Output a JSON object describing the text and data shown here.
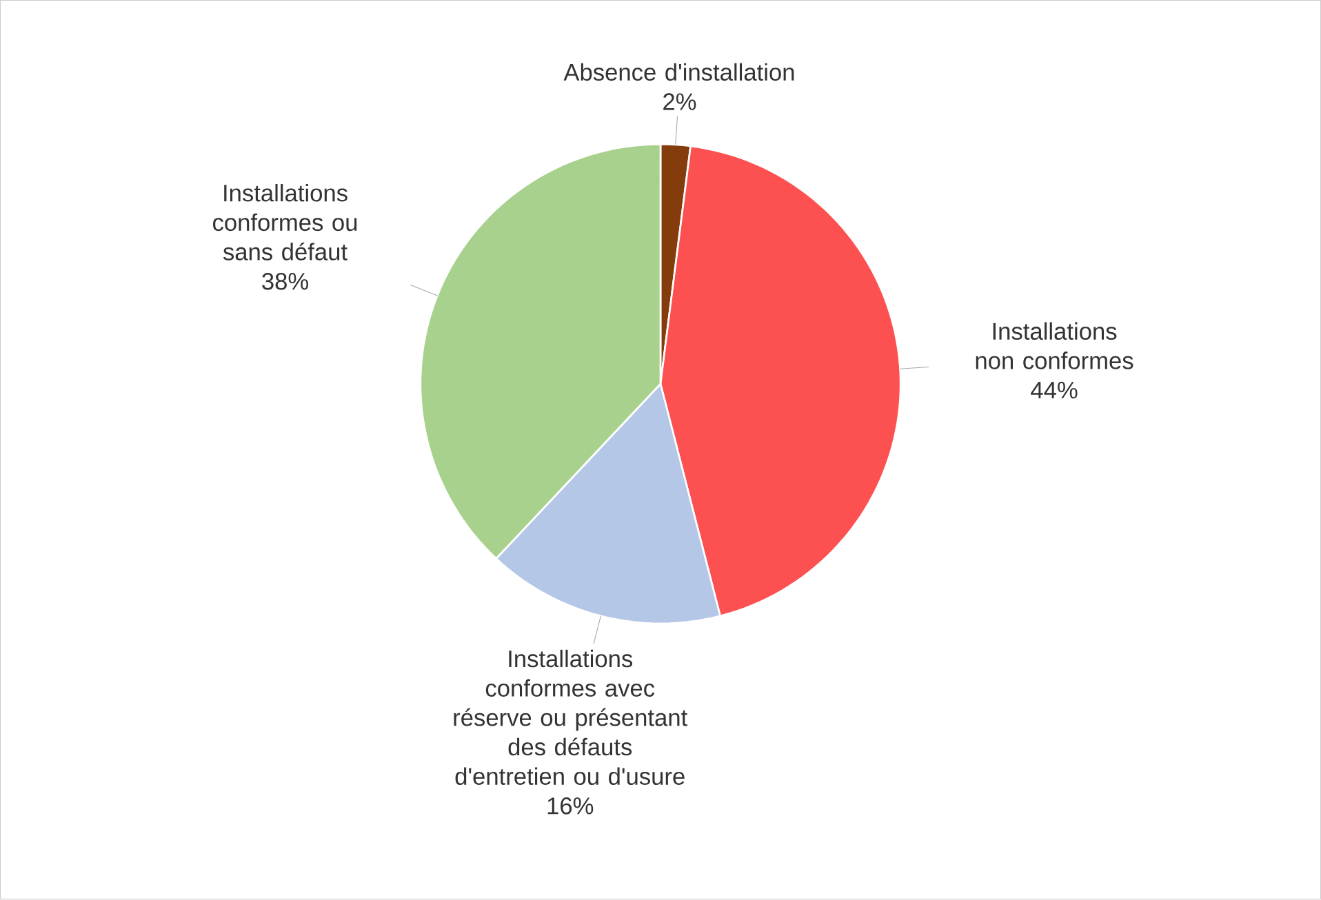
{
  "chart_data": {
    "type": "pie",
    "categories": [
      "Absence d'installation",
      "Installations non conformes",
      "Installations conformes avec réserve ou présentant des défauts d'entretien ou d'usure",
      "Installations conformes ou sans défaut"
    ],
    "values": [
      2,
      44,
      16,
      38
    ],
    "colors": [
      "#843c0c",
      "#fd5050",
      "#b4c7e7",
      "#a9d18e"
    ],
    "value_labels": [
      "2%",
      "44%",
      "16%",
      "38%"
    ]
  }
}
